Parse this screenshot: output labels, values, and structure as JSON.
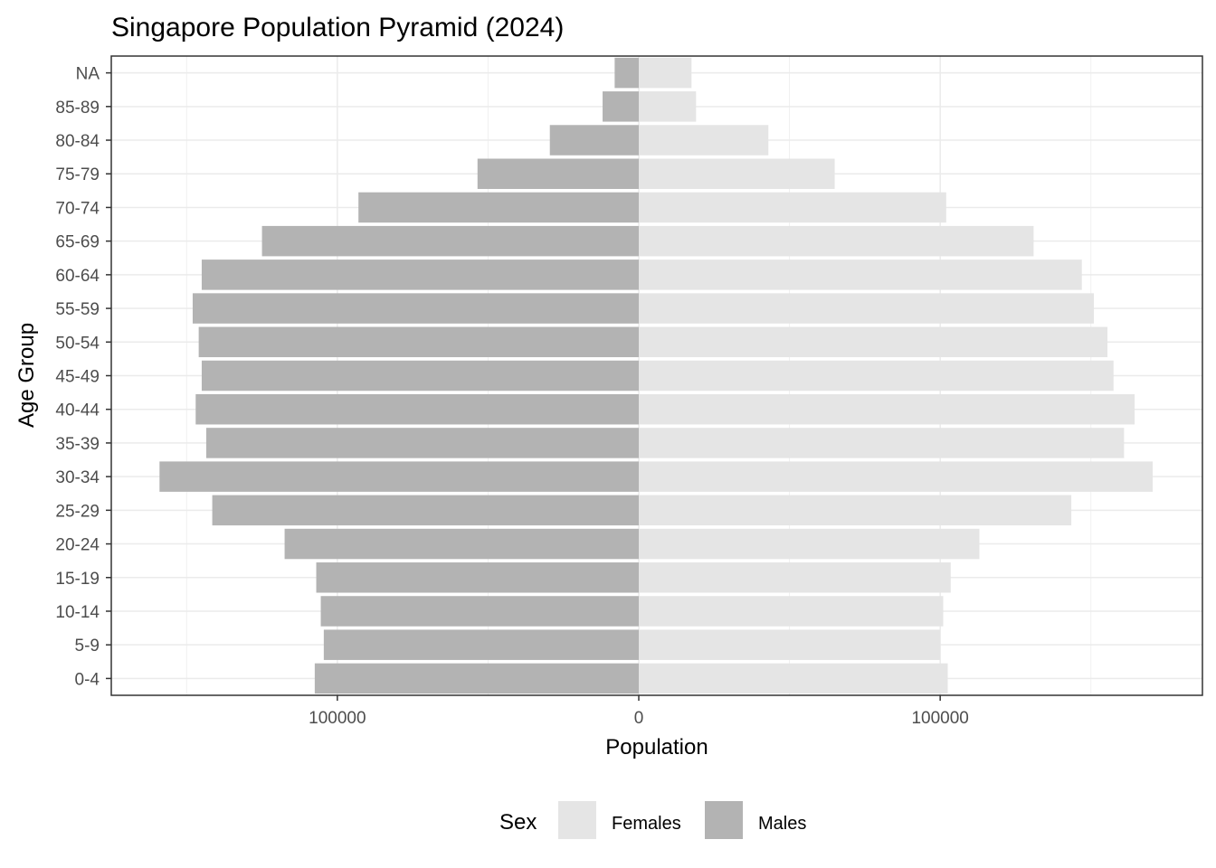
{
  "chart_data": {
    "type": "bar",
    "orientation": "horizontal",
    "title": "Singapore Population Pyramid (2024)",
    "xlabel": "Population",
    "ylabel": "Age Group",
    "categories": [
      "0-4",
      "5-9",
      "10-14",
      "15-19",
      "20-24",
      "25-29",
      "30-34",
      "35-39",
      "40-44",
      "45-49",
      "50-54",
      "55-59",
      "60-64",
      "65-69",
      "70-74",
      "75-79",
      "80-84",
      "85-89",
      "NA"
    ],
    "series": [
      {
        "name": "Males",
        "color": "#b3b3b3",
        "values": [
          -107500,
          -104500,
          -105500,
          -107000,
          -117500,
          -141500,
          -159000,
          -143500,
          -147000,
          -145000,
          -146000,
          -148000,
          -145000,
          -125000,
          -93000,
          -53500,
          -29500,
          -12000,
          -8000
        ]
      },
      {
        "name": "Females",
        "color": "#e5e5e5",
        "values": [
          102500,
          100000,
          101000,
          103500,
          113000,
          143500,
          170500,
          161000,
          164500,
          157500,
          155500,
          151000,
          147000,
          131000,
          102000,
          65000,
          43000,
          19000,
          17500
        ]
      }
    ],
    "xlim": [
      -175000,
      187000
    ],
    "xticks": [
      -100000,
      0,
      100000
    ],
    "xtick_labels": [
      "100000",
      "0",
      "100000"
    ],
    "grid": true,
    "legend": {
      "title": "Sex",
      "position": "bottom",
      "entries": [
        {
          "label": "Females",
          "color": "#e5e5e5"
        },
        {
          "label": "Males",
          "color": "#b3b3b3"
        }
      ]
    }
  }
}
